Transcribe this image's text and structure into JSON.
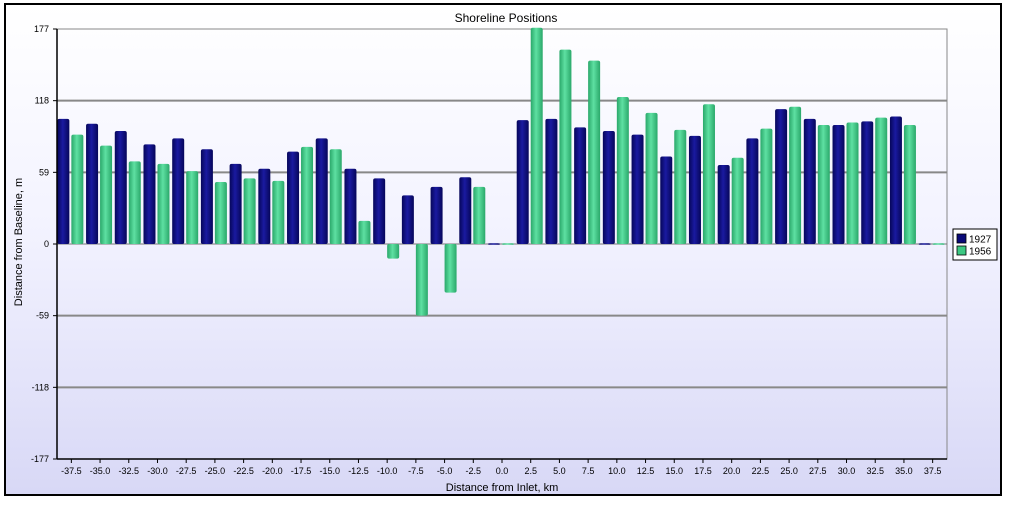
{
  "chart_data": {
    "type": "bar",
    "title": "Shoreline Positions",
    "xlabel": "Distance from Inlet, km",
    "ylabel": "Distance from Baseline, m",
    "ylim": [
      -177,
      177
    ],
    "yticks": [
      "177",
      "118",
      "59",
      "0",
      "-59",
      "-118",
      "-177"
    ],
    "ytick_values": [
      177,
      118,
      59,
      0,
      -59,
      -118,
      -177
    ],
    "grid": "horizontal",
    "legend_position": "right",
    "categories": [
      "-37.5",
      "-35.0",
      "-32.5",
      "-30.0",
      "-27.5",
      "-25.0",
      "-22.5",
      "-20.0",
      "-17.5",
      "-15.0",
      "-12.5",
      "-10.0",
      "-7.5",
      "-5.0",
      "-2.5",
      "0.0",
      "2.5",
      "5.0",
      "7.5",
      "10.0",
      "12.5",
      "15.0",
      "17.5",
      "20.0",
      "22.5",
      "25.0",
      "27.5",
      "30.0",
      "32.5",
      "35.0",
      "37.5"
    ],
    "series": [
      {
        "name": "1927",
        "color": "#0a0a78",
        "values": [
          103,
          99,
          93,
          82,
          87,
          78,
          66,
          62,
          76,
          87,
          62,
          54,
          40,
          47,
          55,
          0,
          102,
          103,
          96,
          93,
          90,
          72,
          89,
          65,
          87,
          111,
          103,
          98,
          101,
          105,
          0
        ]
      },
      {
        "name": "1956",
        "color": "#3cc882",
        "values": [
          90,
          81,
          68,
          66,
          60,
          51,
          54,
          52,
          80,
          78,
          19,
          -12,
          -59,
          -40,
          47,
          0,
          178,
          160,
          151,
          121,
          108,
          94,
          115,
          71,
          95,
          113,
          98,
          100,
          104,
          98,
          0
        ]
      }
    ]
  }
}
